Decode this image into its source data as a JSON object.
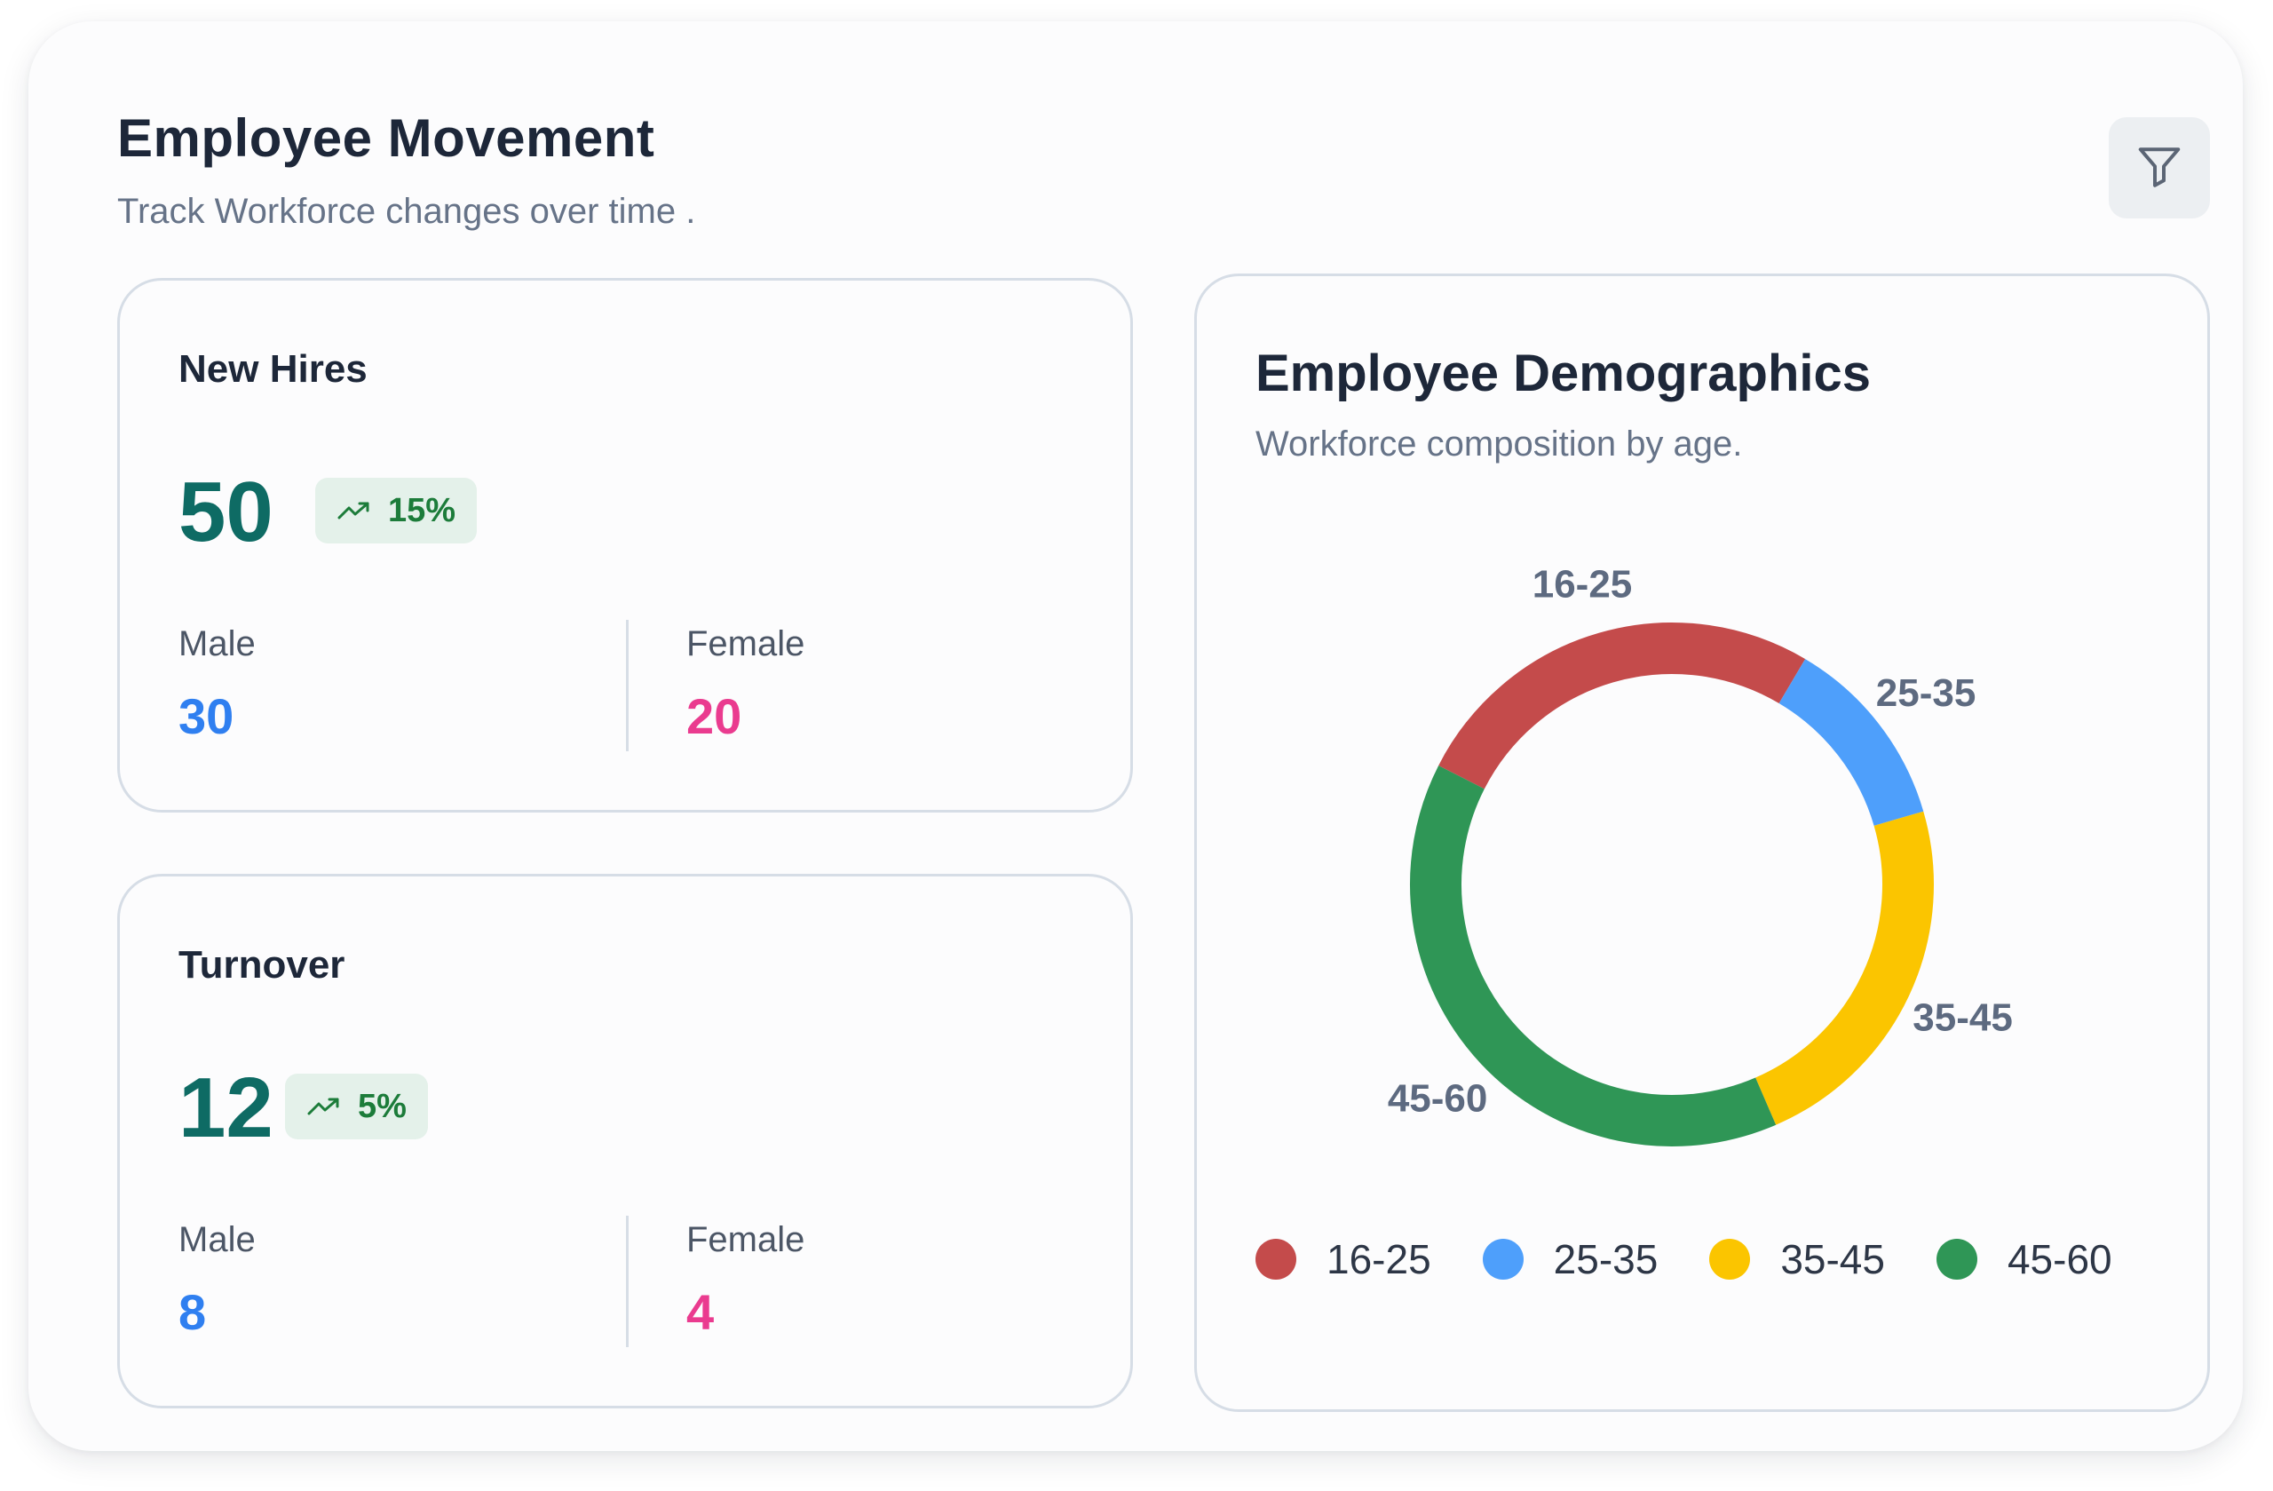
{
  "header": {
    "title": "Employee Movement",
    "subtitle": "Track Workforce changes over time ."
  },
  "toolbar": {
    "filter_icon": "filter-icon"
  },
  "new_hires": {
    "title": "New Hires",
    "value": "50",
    "trend": "15%",
    "trend_icon": "trending-up-icon",
    "male_label": "Male",
    "male_value": "30",
    "female_label": "Female",
    "female_value": "20"
  },
  "turnover": {
    "title": "Turnover",
    "value": "12",
    "trend": "5%",
    "trend_icon": "trending-up-icon",
    "male_label": "Male",
    "male_value": "8",
    "female_label": "Female",
    "female_value": "4"
  },
  "colors": {
    "accent_value": "#0e6b64",
    "male": "#2f7ff0",
    "female": "#ea3b8f",
    "trend_badge_bg": "#e4f1ea",
    "trend_badge_text": "#1c7c3a"
  },
  "demographics": {
    "title": "Employee Demographics",
    "subtitle": "Workforce composition by age."
  },
  "chart_data": {
    "type": "pie",
    "variant": "donut",
    "categories": [
      "16-25",
      "25-35",
      "35-45",
      "45-60"
    ],
    "values": [
      26,
      12,
      23,
      39
    ],
    "colors": [
      "#c44b4b",
      "#4e9ffb",
      "#fbc500",
      "#2f9656"
    ],
    "legend_labels": [
      "16-25",
      "25-35",
      "35-45",
      "45-60"
    ],
    "legend_position": "bottom"
  }
}
